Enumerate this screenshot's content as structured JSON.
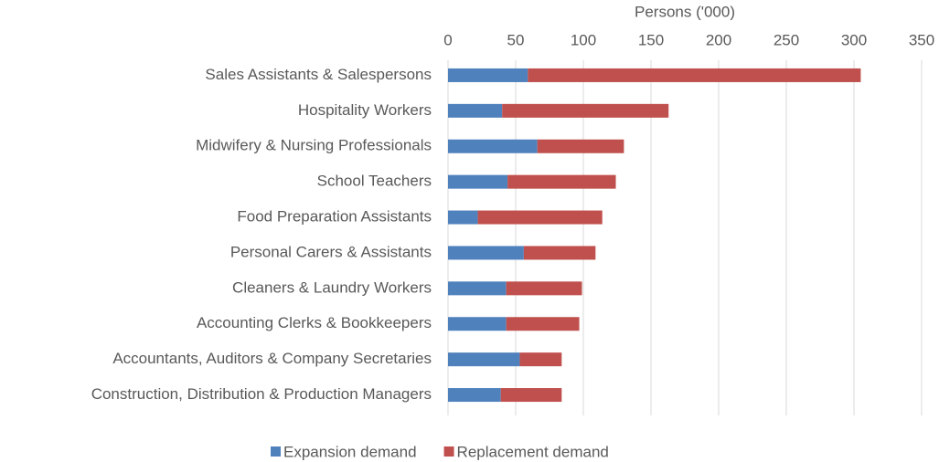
{
  "chart_data": {
    "type": "stacked-barh",
    "x_label": "Persons ('000)",
    "categories": [
      "Sales Assistants & Salespersons",
      "Hospitality Workers",
      "Midwifery & Nursing Professionals",
      "School Teachers",
      "Food Preparation Assistants",
      "Personal Carers & Assistants",
      "Cleaners & Laundry Workers",
      "Accounting Clerks & Bookkeepers",
      "Accountants, Auditors & Company Secretaries",
      "Construction, Distribution & Production Managers"
    ],
    "series": [
      {
        "name": "Expansion demand",
        "color": "#4f81bd",
        "values": [
          59,
          40,
          66,
          44,
          22,
          56,
          43,
          43,
          53,
          39
        ]
      },
      {
        "name": "Replacement demand",
        "color": "#c0504d",
        "values": [
          246,
          123,
          64,
          80,
          92,
          53,
          56,
          54,
          31,
          45
        ]
      }
    ],
    "xlim": [
      0,
      350
    ],
    "xticks": [
      0,
      50,
      100,
      150,
      200,
      250,
      300,
      350
    ],
    "grid": true,
    "legend": "bottom"
  }
}
